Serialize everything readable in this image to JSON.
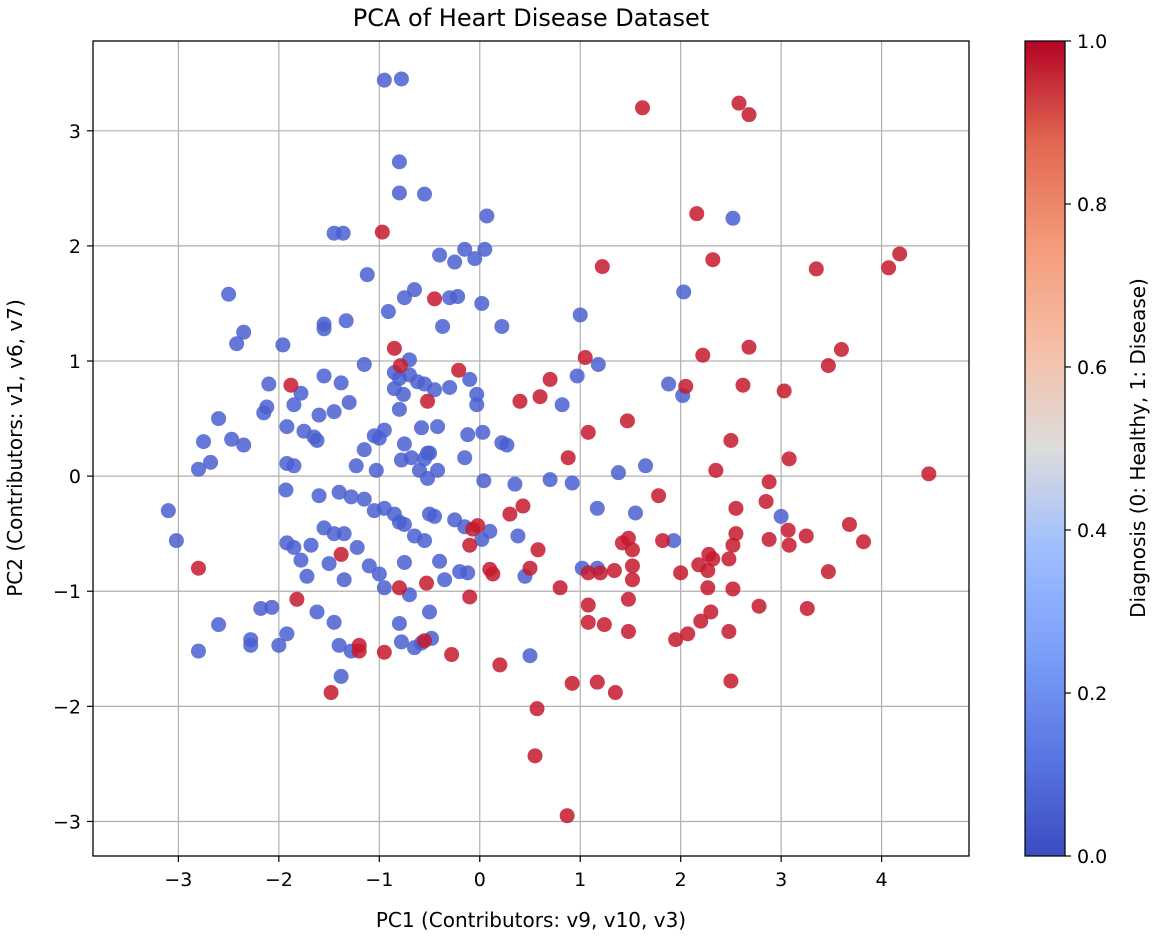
{
  "chart_data": {
    "type": "scatter",
    "title": "PCA of Heart Disease Dataset",
    "xlabel": "PC1 (Contributors: v9, v10, v3)",
    "ylabel": "PC2 (Contributors: v1, v6, v7)",
    "colorbar_label": "Diagnosis (0: Healthy, 1: Disease)",
    "xlim": [
      -3.85,
      4.87
    ],
    "ylim": [
      -3.3,
      3.78
    ],
    "xticks": [
      -3,
      -2,
      -1,
      0,
      1,
      2,
      3,
      4
    ],
    "xtick_labels": [
      "−3",
      "−2",
      "−1",
      "0",
      "1",
      "2",
      "3",
      "4"
    ],
    "yticks": [
      -3,
      -2,
      -1,
      0,
      1,
      2,
      3
    ],
    "ytick_labels": [
      "−3",
      "−2",
      "−1",
      "0",
      "1",
      "2",
      "3"
    ],
    "colorbar_ticks": [
      0.0,
      0.2,
      0.4,
      0.6,
      0.8,
      1.0
    ],
    "colorbar_tick_labels": [
      "0.0",
      "0.2",
      "0.4",
      "0.6",
      "0.8",
      "1.0"
    ],
    "grid": true,
    "colormap": "coolwarm",
    "colors": {
      "healthy": "#4a5fd0",
      "disease": "#c5192d"
    },
    "series": [
      {
        "name": "Healthy",
        "diagnosis": 0,
        "points": [
          [
            -0.95,
            3.44
          ],
          [
            -0.78,
            3.45
          ],
          [
            -0.8,
            2.73
          ],
          [
            -0.8,
            2.46
          ],
          [
            -0.55,
            2.45
          ],
          [
            0.07,
            2.26
          ],
          [
            2.52,
            2.24
          ],
          [
            -1.45,
            2.11
          ],
          [
            -1.36,
            2.11
          ],
          [
            -0.4,
            1.92
          ],
          [
            -0.25,
            1.86
          ],
          [
            0.05,
            1.97
          ],
          [
            -0.05,
            1.89
          ],
          [
            -0.15,
            1.97
          ],
          [
            -1.12,
            1.75
          ],
          [
            -0.65,
            1.62
          ],
          [
            -0.75,
            1.55
          ],
          [
            -0.3,
            1.55
          ],
          [
            -0.22,
            1.56
          ],
          [
            0.02,
            1.5
          ],
          [
            2.03,
            1.6
          ],
          [
            1.0,
            1.4
          ],
          [
            -2.5,
            1.58
          ],
          [
            -1.55,
            1.32
          ],
          [
            -1.55,
            1.28
          ],
          [
            -1.33,
            1.35
          ],
          [
            -0.91,
            1.43
          ],
          [
            -0.37,
            1.3
          ],
          [
            0.22,
            1.3
          ],
          [
            -2.35,
            1.25
          ],
          [
            -2.42,
            1.15
          ],
          [
            -1.96,
            1.14
          ],
          [
            -1.15,
            0.97
          ],
          [
            -0.7,
            1.01
          ],
          [
            -1.55,
            0.87
          ],
          [
            -1.38,
            0.81
          ],
          [
            -0.85,
            0.9
          ],
          [
            -0.8,
            0.85
          ],
          [
            -0.7,
            0.88
          ],
          [
            -0.62,
            0.82
          ],
          [
            -0.55,
            0.8
          ],
          [
            -0.45,
            0.75
          ],
          [
            -0.3,
            0.77
          ],
          [
            -0.1,
            0.84
          ],
          [
            -0.03,
            0.62
          ],
          [
            1.18,
            0.97
          ],
          [
            1.88,
            0.8
          ],
          [
            2.02,
            0.7
          ],
          [
            0.97,
            0.87
          ],
          [
            0.82,
            0.62
          ],
          [
            -2.1,
            0.8
          ],
          [
            -2.12,
            0.6
          ],
          [
            -2.15,
            0.55
          ],
          [
            -1.85,
            0.62
          ],
          [
            -1.78,
            0.72
          ],
          [
            -1.6,
            0.53
          ],
          [
            -1.3,
            0.64
          ],
          [
            -1.45,
            0.56
          ],
          [
            -1.75,
            0.39
          ],
          [
            -1.65,
            0.34
          ],
          [
            -1.92,
            0.43
          ],
          [
            -1.62,
            0.31
          ],
          [
            -0.85,
            0.76
          ],
          [
            -0.76,
            0.71
          ],
          [
            -0.8,
            0.58
          ],
          [
            -0.95,
            0.4
          ],
          [
            -1.05,
            0.35
          ],
          [
            -1.0,
            0.33
          ],
          [
            -0.75,
            0.28
          ],
          [
            -0.58,
            0.42
          ],
          [
            -0.52,
            0.2
          ],
          [
            -0.42,
            0.43
          ],
          [
            -0.12,
            0.36
          ],
          [
            -0.03,
            0.71
          ],
          [
            0.03,
            0.38
          ],
          [
            0.22,
            0.29
          ],
          [
            0.27,
            0.27
          ],
          [
            -2.6,
            0.5
          ],
          [
            -2.47,
            0.32
          ],
          [
            -2.35,
            0.27
          ],
          [
            -2.75,
            0.3
          ],
          [
            -2.68,
            0.12
          ],
          [
            -2.8,
            0.06
          ],
          [
            -1.92,
            0.11
          ],
          [
            -1.85,
            0.09
          ],
          [
            -1.15,
            0.23
          ],
          [
            -1.23,
            0.09
          ],
          [
            -1.03,
            0.05
          ],
          [
            -0.78,
            0.14
          ],
          [
            -0.68,
            0.16
          ],
          [
            -0.55,
            0.15
          ],
          [
            -0.5,
            0.2
          ],
          [
            -0.15,
            0.16
          ],
          [
            -0.52,
            -0.02
          ],
          [
            -0.42,
            0.05
          ],
          [
            -0.6,
            0.05
          ],
          [
            0.04,
            -0.04
          ],
          [
            1.38,
            0.03
          ],
          [
            1.65,
            0.09
          ],
          [
            0.7,
            -0.03
          ],
          [
            0.92,
            -0.06
          ],
          [
            0.35,
            -0.07
          ],
          [
            -3.1,
            -0.3
          ],
          [
            -3.02,
            -0.56
          ],
          [
            -1.93,
            -0.12
          ],
          [
            -1.6,
            -0.17
          ],
          [
            -1.55,
            -0.45
          ],
          [
            -1.45,
            -0.5
          ],
          [
            -1.4,
            -0.14
          ],
          [
            -1.35,
            -0.5
          ],
          [
            -1.28,
            -0.18
          ],
          [
            -1.15,
            -0.2
          ],
          [
            -1.05,
            -0.3
          ],
          [
            -0.95,
            -0.28
          ],
          [
            -0.85,
            -0.33
          ],
          [
            -0.8,
            -0.4
          ],
          [
            -0.75,
            -0.42
          ],
          [
            -0.65,
            -0.52
          ],
          [
            -0.5,
            -0.33
          ],
          [
            -0.45,
            -0.35
          ],
          [
            -0.25,
            -0.38
          ],
          [
            -0.15,
            -0.44
          ],
          [
            0.1,
            -0.48
          ],
          [
            0.38,
            -0.52
          ],
          [
            1.17,
            -0.28
          ],
          [
            1.55,
            -0.32
          ],
          [
            3.0,
            -0.35
          ],
          [
            -1.92,
            -0.58
          ],
          [
            -1.85,
            -0.62
          ],
          [
            -1.78,
            -0.73
          ],
          [
            -1.72,
            -0.87
          ],
          [
            -1.68,
            -0.6
          ],
          [
            -1.5,
            -0.76
          ],
          [
            -1.35,
            -0.9
          ],
          [
            -1.22,
            -0.62
          ],
          [
            -1.1,
            -0.78
          ],
          [
            -1.0,
            -0.85
          ],
          [
            -0.95,
            -0.97
          ],
          [
            -0.75,
            -0.75
          ],
          [
            -0.55,
            -0.56
          ],
          [
            -0.4,
            -0.74
          ],
          [
            -0.35,
            -0.9
          ],
          [
            -0.2,
            -0.83
          ],
          [
            0.02,
            -0.55
          ],
          [
            0.45,
            -0.87
          ],
          [
            1.02,
            -0.8
          ],
          [
            1.17,
            -0.8
          ],
          [
            1.93,
            -0.56
          ],
          [
            -2.18,
            -1.15
          ],
          [
            -2.0,
            -1.47
          ],
          [
            -2.28,
            -1.42
          ],
          [
            -2.28,
            -1.47
          ],
          [
            -2.6,
            -1.29
          ],
          [
            -2.8,
            -1.52
          ],
          [
            -2.07,
            -1.14
          ],
          [
            -1.92,
            -1.37
          ],
          [
            -1.62,
            -1.18
          ],
          [
            -1.45,
            -1.27
          ],
          [
            -1.4,
            -1.47
          ],
          [
            -1.38,
            -1.74
          ],
          [
            -1.28,
            -1.52
          ],
          [
            -0.8,
            -1.28
          ],
          [
            -0.78,
            -1.44
          ],
          [
            -0.65,
            -1.49
          ],
          [
            -0.7,
            -1.03
          ],
          [
            -0.5,
            -1.18
          ],
          [
            -0.48,
            -1.41
          ],
          [
            -0.58,
            -1.45
          ],
          [
            0.5,
            -1.56
          ],
          [
            -0.12,
            -0.84
          ]
        ]
      },
      {
        "name": "Disease",
        "diagnosis": 1,
        "points": [
          [
            1.62,
            3.2
          ],
          [
            2.58,
            3.24
          ],
          [
            2.68,
            3.14
          ],
          [
            2.16,
            2.28
          ],
          [
            2.32,
            1.88
          ],
          [
            1.22,
            1.82
          ],
          [
            3.35,
            1.8
          ],
          [
            4.18,
            1.93
          ],
          [
            4.07,
            1.81
          ],
          [
            -0.97,
            2.12
          ],
          [
            -0.45,
            1.54
          ],
          [
            -0.85,
            1.11
          ],
          [
            -0.79,
            0.96
          ],
          [
            -1.88,
            0.79
          ],
          [
            -0.21,
            0.92
          ],
          [
            -0.52,
            0.65
          ],
          [
            1.05,
            1.03
          ],
          [
            2.22,
            1.05
          ],
          [
            2.68,
            1.12
          ],
          [
            3.6,
            1.1
          ],
          [
            3.47,
            0.96
          ],
          [
            3.03,
            0.74
          ],
          [
            2.05,
            0.78
          ],
          [
            2.62,
            0.79
          ],
          [
            0.4,
            0.65
          ],
          [
            0.6,
            0.69
          ],
          [
            0.7,
            0.84
          ],
          [
            1.08,
            0.38
          ],
          [
            1.47,
            0.48
          ],
          [
            2.5,
            0.31
          ],
          [
            3.08,
            0.15
          ],
          [
            2.35,
            0.05
          ],
          [
            4.47,
            0.02
          ],
          [
            0.88,
            0.16
          ],
          [
            1.78,
            -0.17
          ],
          [
            2.88,
            -0.05
          ],
          [
            2.85,
            -0.22
          ],
          [
            0.43,
            -0.26
          ],
          [
            0.3,
            -0.33
          ],
          [
            -0.1,
            -0.6
          ],
          [
            -0.07,
            -0.46
          ],
          [
            -0.02,
            -0.43
          ],
          [
            -1.38,
            -0.68
          ],
          [
            0.58,
            -0.64
          ],
          [
            1.42,
            -0.58
          ],
          [
            1.48,
            -0.54
          ],
          [
            1.52,
            -0.64
          ],
          [
            1.52,
            -0.78
          ],
          [
            1.34,
            -0.82
          ],
          [
            1.2,
            -0.84
          ],
          [
            1.08,
            -0.84
          ],
          [
            1.82,
            -0.56
          ],
          [
            2.18,
            -0.77
          ],
          [
            2.28,
            -0.68
          ],
          [
            2.32,
            -0.72
          ],
          [
            2.48,
            -0.72
          ],
          [
            2.55,
            -0.5
          ],
          [
            2.52,
            -0.6
          ],
          [
            2.55,
            -0.28
          ],
          [
            2.88,
            -0.55
          ],
          [
            3.08,
            -0.6
          ],
          [
            3.07,
            -0.47
          ],
          [
            3.25,
            -0.52
          ],
          [
            3.68,
            -0.42
          ],
          [
            3.82,
            -0.57
          ],
          [
            0.1,
            -0.81
          ],
          [
            0.13,
            -0.85
          ],
          [
            0.5,
            -0.8
          ],
          [
            0.8,
            -0.97
          ],
          [
            -2.8,
            -0.8
          ],
          [
            -1.82,
            -1.07
          ],
          [
            -0.8,
            -0.97
          ],
          [
            -0.53,
            -0.93
          ],
          [
            -0.1,
            -1.05
          ],
          [
            1.08,
            -1.27
          ],
          [
            1.08,
            -1.12
          ],
          [
            1.24,
            -1.29
          ],
          [
            1.48,
            -1.35
          ],
          [
            1.48,
            -1.07
          ],
          [
            1.52,
            -0.9
          ],
          [
            2.0,
            -0.84
          ],
          [
            2.27,
            -0.97
          ],
          [
            2.27,
            -0.82
          ],
          [
            2.3,
            -1.18
          ],
          [
            2.2,
            -1.26
          ],
          [
            2.07,
            -1.37
          ],
          [
            1.95,
            -1.42
          ],
          [
            2.48,
            -1.35
          ],
          [
            2.52,
            -0.98
          ],
          [
            2.78,
            -1.13
          ],
          [
            3.47,
            -0.83
          ],
          [
            3.26,
            -1.15
          ],
          [
            0.92,
            -1.8
          ],
          [
            1.17,
            -1.79
          ],
          [
            1.35,
            -1.88
          ],
          [
            2.5,
            -1.78
          ],
          [
            -1.2,
            -1.47
          ],
          [
            -1.2,
            -1.52
          ],
          [
            -0.95,
            -1.53
          ],
          [
            -0.55,
            -1.43
          ],
          [
            -0.28,
            -1.55
          ],
          [
            0.2,
            -1.64
          ],
          [
            -1.48,
            -1.88
          ],
          [
            0.57,
            -2.02
          ],
          [
            0.55,
            -2.43
          ],
          [
            0.87,
            -2.95
          ]
        ]
      }
    ]
  }
}
